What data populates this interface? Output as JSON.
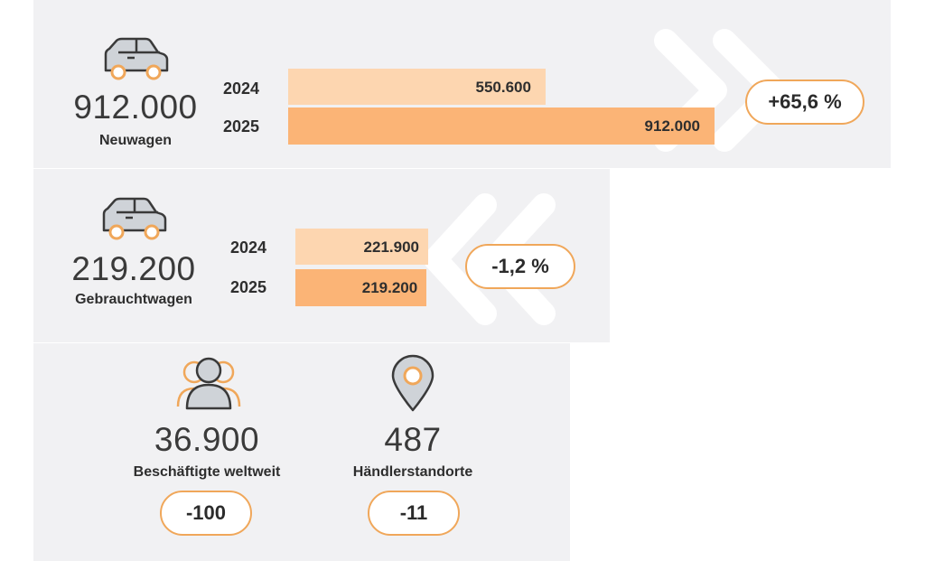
{
  "colors": {
    "panel_bg": "#f1f1f3",
    "bar_2024": "#fdd6b0",
    "bar_2025": "#fbb476",
    "accent": "#f0a75a",
    "icon_fill": "#cfd3d8",
    "icon_stroke": "#3a3a3a"
  },
  "neuwagen": {
    "total": "912.000",
    "label": "Neuwagen",
    "change": "+65,6 %",
    "icon": "car-icon"
  },
  "gebrauchtwagen": {
    "total": "219.200",
    "label": "Gebrauchtwagen",
    "change": "-1,2 %",
    "icon": "car-icon"
  },
  "beschaeftigte": {
    "total": "36.900",
    "label": "Beschäftigte weltweit",
    "change": "-100",
    "icon": "people-icon"
  },
  "haendler": {
    "total": "487",
    "label": "Händlerstandorte",
    "change": "-11",
    "icon": "location-pin-icon"
  },
  "chart_data": [
    {
      "type": "bar",
      "orientation": "horizontal",
      "title": "Neuwagen",
      "categories": [
        "2024",
        "2025"
      ],
      "values": [
        550600,
        912000
      ],
      "value_labels": [
        "550.600",
        "912.000"
      ],
      "xlim": [
        0,
        912000
      ]
    },
    {
      "type": "bar",
      "orientation": "horizontal",
      "title": "Gebrauchtwagen",
      "categories": [
        "2024",
        "2025"
      ],
      "values": [
        221900,
        219200
      ],
      "value_labels": [
        "221.900",
        "219.200"
      ],
      "xlim": [
        0,
        221900
      ]
    }
  ]
}
